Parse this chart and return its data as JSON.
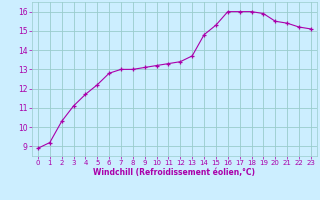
{
  "x": [
    0,
    1,
    2,
    3,
    4,
    5,
    6,
    7,
    8,
    9,
    10,
    11,
    12,
    13,
    14,
    15,
    16,
    17,
    18,
    19,
    20,
    21,
    22,
    23
  ],
  "y": [
    8.9,
    9.2,
    10.3,
    11.1,
    11.7,
    12.2,
    12.8,
    13.0,
    13.0,
    13.1,
    13.2,
    13.3,
    13.4,
    13.7,
    14.8,
    15.3,
    16.0,
    16.0,
    16.0,
    15.9,
    15.5,
    15.4,
    15.2,
    15.1
  ],
  "line_color": "#aa00aa",
  "marker": "+",
  "bg_color": "#cceeff",
  "grid_color": "#99cccc",
  "xlabel": "Windchill (Refroidissement éolien,°C)",
  "xlabel_color": "#aa00aa",
  "tick_color": "#aa00aa",
  "ylim": [
    8.5,
    16.5
  ],
  "xlim": [
    -0.5,
    23.5
  ],
  "yticks": [
    9,
    10,
    11,
    12,
    13,
    14,
    15,
    16
  ],
  "xticks": [
    0,
    1,
    2,
    3,
    4,
    5,
    6,
    7,
    8,
    9,
    10,
    11,
    12,
    13,
    14,
    15,
    16,
    17,
    18,
    19,
    20,
    21,
    22,
    23
  ],
  "figsize": [
    3.2,
    2.0
  ],
  "dpi": 100
}
